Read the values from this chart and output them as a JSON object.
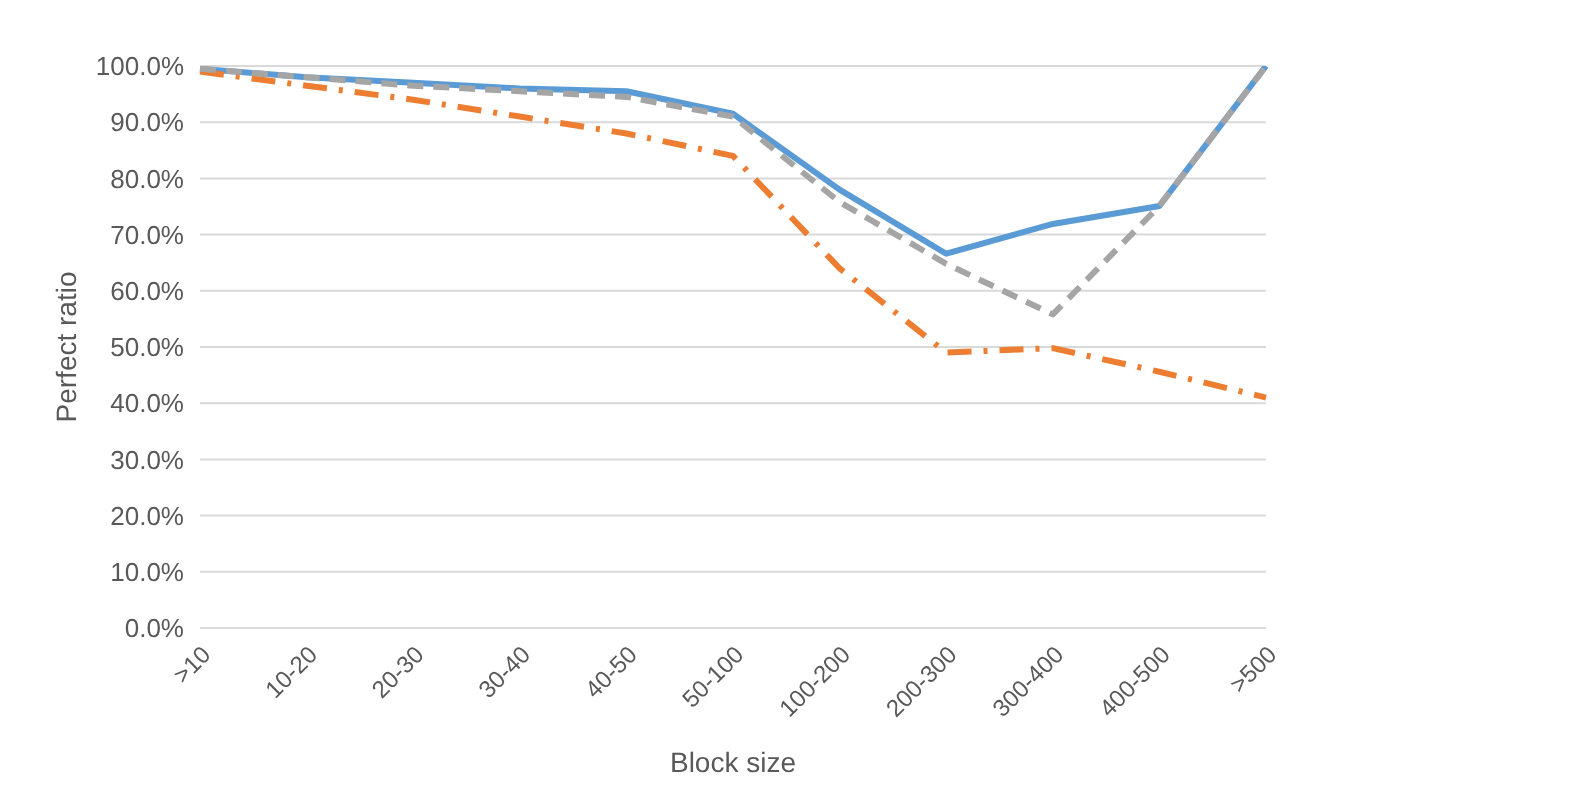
{
  "chart_data": {
    "type": "line",
    "xlabel": "Block size",
    "ylabel": "Perfect ratio",
    "categories": [
      ">10",
      "10-20",
      "20-30",
      "30-40",
      "40-50",
      "50-100",
      "100-200",
      "200-300",
      "300-400",
      "400-500",
      ">500"
    ],
    "series": [
      {
        "color": "#5b9bd5",
        "line_style": "solid",
        "values": [
          99.5,
          98,
          97,
          96,
          95.5,
          91.5,
          78,
          66.6,
          71.9,
          75.1,
          100
        ]
      },
      {
        "color": "#ed7d31",
        "line_style": "dashdot",
        "values": [
          99,
          96.5,
          94,
          91,
          88,
          84,
          64,
          49,
          49.8,
          45.6,
          41
        ]
      },
      {
        "color": "#a5a5a5",
        "line_style": "dashed",
        "values": [
          99.5,
          98,
          96.5,
          95.5,
          94.5,
          91,
          75.8,
          64.8,
          55.8,
          75.1,
          100
        ]
      }
    ],
    "ylim": [
      0,
      100
    ],
    "yticks": [
      {
        "value": 0,
        "label": "0.0%"
      },
      {
        "value": 10,
        "label": "10.0%"
      },
      {
        "value": 20,
        "label": "20.0%"
      },
      {
        "value": 30,
        "label": "30.0%"
      },
      {
        "value": 40,
        "label": "40.0%"
      },
      {
        "value": 50,
        "label": "50.0%"
      },
      {
        "value": 60,
        "label": "60.0%"
      },
      {
        "value": 70,
        "label": "70.0%"
      },
      {
        "value": 80,
        "label": "80.0%"
      },
      {
        "value": 90,
        "label": "90.0%"
      },
      {
        "value": 100,
        "label": "100.0%"
      }
    ],
    "grid": "y",
    "legend": false,
    "marker": "none"
  }
}
